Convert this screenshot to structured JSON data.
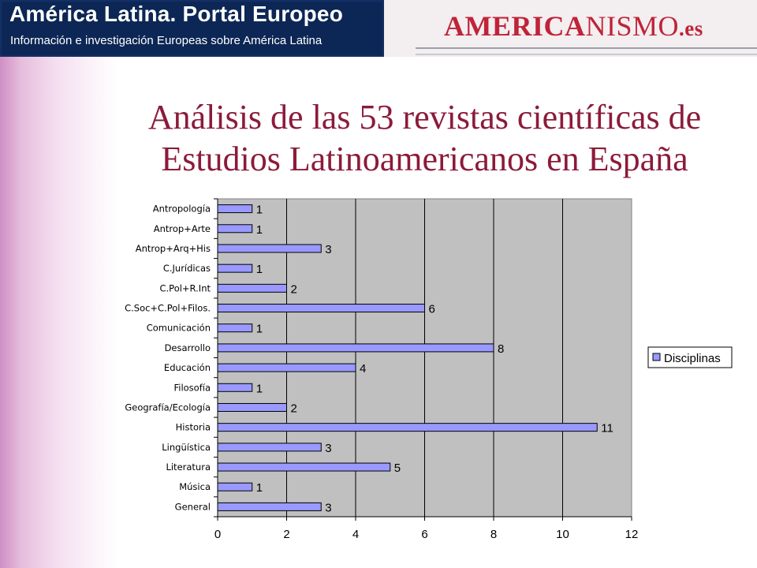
{
  "header": {
    "portal_title": "América Latina. Portal Europeo",
    "portal_subtitle": "Información e investigación Europeas sobre América Latina",
    "logo_part1": "AMERICA",
    "logo_part2": "NISMO",
    "logo_part3": ".es"
  },
  "title": {
    "line1": "Análisis de las 53 revistas científicas de",
    "line2": "Estudios Latinoamericanos en España"
  },
  "colors": {
    "bar_fill": "#9999ff",
    "plot_bg": "#c0c0c0",
    "title": "#8b1b3a",
    "header_bg": "#0c2755",
    "logo_red": "#bf2438"
  },
  "chart_data": {
    "type": "bar",
    "orientation": "horizontal",
    "categories": [
      "Antropología",
      "Antrop+Arte",
      "Antrop+Arq+His",
      "C.Jurídicas",
      "C.Pol+R.Int",
      "C.Soc+C.Pol+Filos.",
      "Comunicación",
      "Desarrollo",
      "Educación",
      "Filosofía",
      "Geografía/Ecología",
      "Historia",
      "Lingüística",
      "Literatura",
      "Música",
      "General"
    ],
    "series": [
      {
        "name": "Disciplinas",
        "values": [
          1,
          1,
          3,
          1,
          2,
          6,
          1,
          8,
          4,
          1,
          2,
          11,
          3,
          5,
          1,
          3
        ]
      }
    ],
    "xlim": [
      0,
      12
    ],
    "x_ticks": [
      0,
      2,
      4,
      6,
      8,
      10,
      12
    ],
    "grid": "vertical",
    "legend": "right"
  }
}
